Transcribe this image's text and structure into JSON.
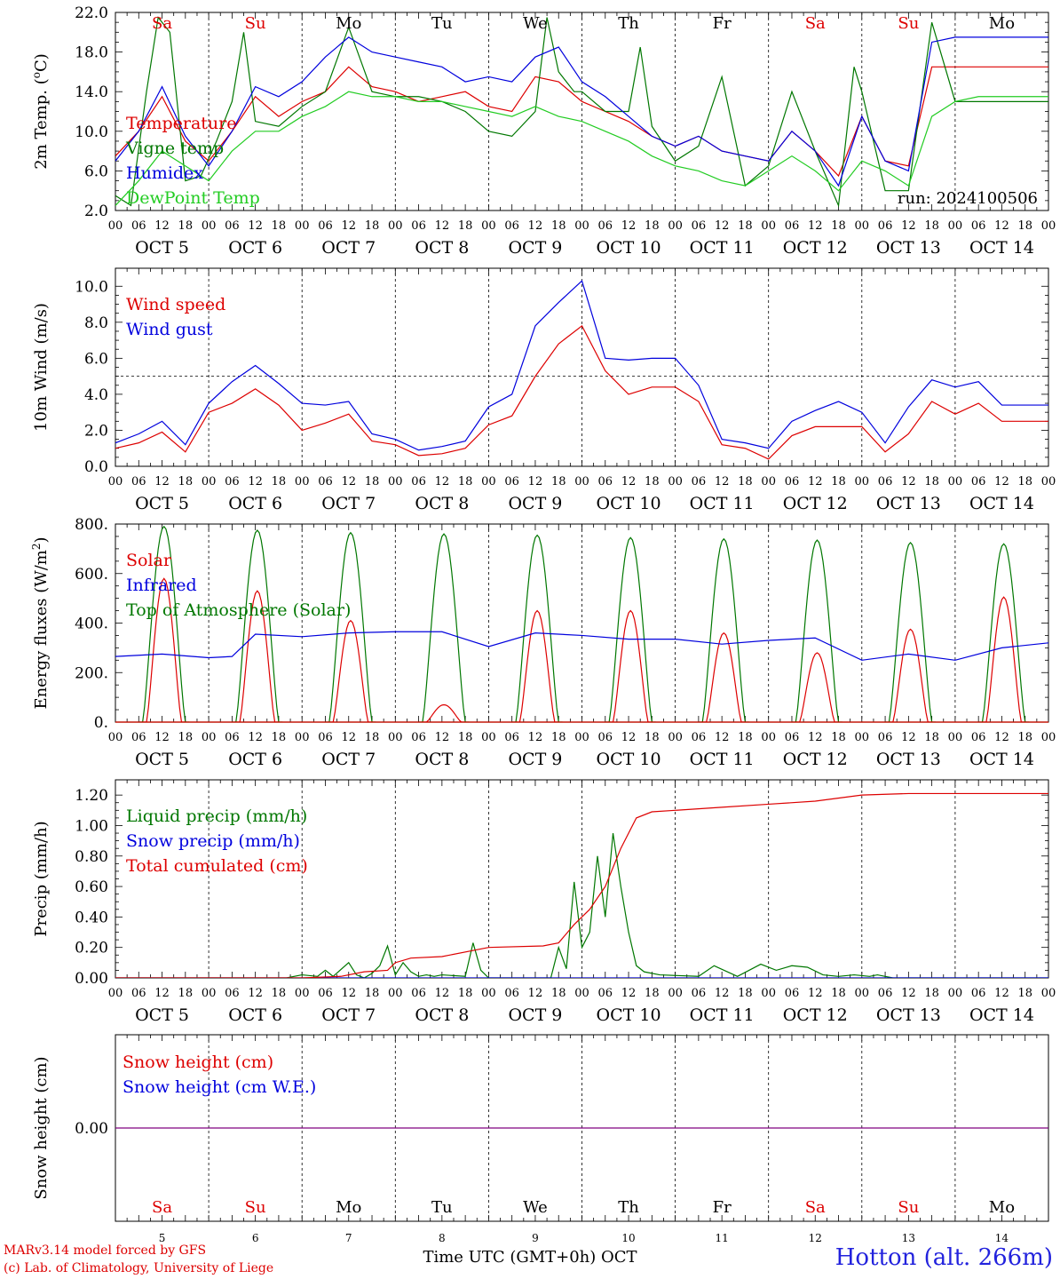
{
  "footer": {
    "credit1": "MARv3.14 model forced by GFS",
    "credit2": "(c) Lab. of Climatology, University of Liege",
    "location": "Hotton (alt. 266m)",
    "time_label": "Time UTC (GMT+0h) OCT"
  },
  "chart_data": [
    {
      "type": "line",
      "ylabel": "2m Temp. (oC)",
      "ylim": [
        2,
        22
      ],
      "yticks": [
        "2.0",
        "6.0",
        "10.0",
        "14.0",
        "18.0",
        "22.0"
      ],
      "annotation": "run: 2024100506",
      "legend": [
        {
          "name": "Temperature",
          "color": "#dd0000"
        },
        {
          "name": "Vigne temp",
          "color": "#007700"
        },
        {
          "name": "Humidex",
          "color": "#0000dd"
        },
        {
          "name": "DewPoint Temp",
          "color": "#22cc22"
        }
      ],
      "days": [
        "Sa",
        "Su",
        "Mo",
        "Tu",
        "We",
        "Th",
        "Fr",
        "Sa",
        "Su",
        "Mo"
      ],
      "day_colors": [
        "#dd0000",
        "#dd0000",
        "#000000",
        "#000000",
        "#000000",
        "#000000",
        "#000000",
        "#dd0000",
        "#dd0000",
        "#000000"
      ],
      "series": [
        {
          "name": "Temperature",
          "color": "#dd0000",
          "x": [
            0,
            6,
            12,
            18,
            24,
            30,
            36,
            42,
            48,
            54,
            60,
            66,
            72,
            78,
            84,
            90,
            96,
            102,
            108,
            114,
            120,
            126,
            132,
            138,
            144,
            150,
            156,
            162,
            168,
            174,
            180,
            186,
            192,
            198,
            204,
            210,
            216,
            222,
            228,
            234,
            240
          ],
          "values": [
            7.5,
            10,
            13.5,
            9,
            7,
            10,
            13.5,
            11.5,
            13,
            14,
            16.5,
            14.5,
            14,
            13,
            13.5,
            14,
            12.5,
            12,
            15.5,
            15,
            13,
            12,
            11,
            9.5,
            8.5,
            9.5,
            8,
            7.5,
            7,
            10,
            8,
            5.5,
            11.5,
            7,
            6.5,
            16.5,
            16.5,
            16.5,
            16.5,
            16.5,
            16.5
          ]
        },
        {
          "name": "Vigne temp",
          "color": "#007700",
          "x": [
            0,
            4,
            8,
            11,
            14,
            18,
            22,
            26,
            30,
            33,
            36,
            42,
            48,
            54,
            60,
            66,
            72,
            78,
            84,
            90,
            96,
            102,
            108,
            111,
            114,
            118,
            120,
            126,
            132,
            135,
            138,
            144,
            150,
            156,
            162,
            168,
            174,
            180,
            186,
            190,
            192,
            198,
            204,
            210,
            216,
            222,
            228,
            234,
            240
          ],
          "values": [
            3.5,
            2.5,
            14,
            21.5,
            20,
            5,
            5.5,
            9,
            13,
            20,
            11,
            10.5,
            12.5,
            14,
            20.5,
            14,
            13.5,
            13.5,
            13,
            12,
            10,
            9.5,
            12,
            21.5,
            16,
            14,
            14,
            12,
            12,
            18.5,
            10.5,
            7,
            8.5,
            15.5,
            4.5,
            6.5,
            14,
            8,
            2.5,
            16.5,
            14,
            4,
            4,
            21,
            13,
            13,
            13,
            13,
            13
          ]
        },
        {
          "name": "Humidex",
          "color": "#0000dd",
          "x": [
            0,
            6,
            12,
            18,
            24,
            30,
            36,
            42,
            48,
            54,
            60,
            66,
            72,
            78,
            84,
            90,
            96,
            102,
            108,
            114,
            120,
            126,
            132,
            138,
            144,
            150,
            156,
            162,
            168,
            174,
            180,
            186,
            192,
            198,
            204,
            210,
            216,
            222,
            228,
            234,
            240
          ],
          "values": [
            7,
            10,
            14.5,
            9.5,
            6.5,
            10,
            14.5,
            13.5,
            15,
            17.5,
            19.5,
            18,
            17.5,
            17,
            16.5,
            15,
            15.5,
            15,
            17.5,
            18.5,
            15,
            13.5,
            11.5,
            9.5,
            8.5,
            9.5,
            8,
            7.5,
            7,
            10,
            8,
            4.5,
            11.5,
            7,
            6,
            19,
            19.5,
            19.5,
            19.5,
            19.5,
            19.5
          ]
        },
        {
          "name": "DewPoint Temp",
          "color": "#22cc22",
          "x": [
            0,
            6,
            12,
            18,
            24,
            30,
            36,
            42,
            48,
            54,
            60,
            66,
            72,
            78,
            84,
            90,
            96,
            102,
            108,
            114,
            120,
            126,
            132,
            138,
            144,
            150,
            156,
            162,
            168,
            174,
            180,
            186,
            192,
            198,
            204,
            210,
            216,
            222,
            228,
            234,
            240
          ],
          "values": [
            2.5,
            5,
            8,
            6.5,
            5,
            8,
            10,
            10,
            11.5,
            12.5,
            14,
            13.5,
            13.5,
            13,
            13,
            12.5,
            12,
            11.5,
            12.5,
            11.5,
            11,
            10,
            9,
            7.5,
            6.5,
            6,
            5,
            4.5,
            6,
            7.5,
            6,
            4,
            7,
            6,
            4.5,
            11.5,
            13,
            13.5,
            13.5,
            13.5,
            13.5
          ]
        }
      ],
      "xticks": [
        "00",
        "06",
        "12",
        "18"
      ],
      "date_labels": [
        "OCT  5",
        "OCT  6",
        "OCT  7",
        "OCT  8",
        "OCT  9",
        "OCT 10",
        "OCT 11",
        "OCT 12",
        "OCT 13",
        "OCT 14"
      ]
    },
    {
      "type": "line",
      "ylabel": "10m Wind (m/s)",
      "ylim": [
        0,
        11
      ],
      "yticks": [
        "0.0",
        "2.0",
        "4.0",
        "6.0",
        "8.0",
        "10.0"
      ],
      "reference_line": 5,
      "legend": [
        {
          "name": "Wind speed",
          "color": "#dd0000"
        },
        {
          "name": "Wind gust",
          "color": "#0000dd"
        }
      ],
      "series": [
        {
          "name": "Wind speed",
          "color": "#dd0000",
          "x": [
            0,
            6,
            12,
            18,
            24,
            30,
            36,
            42,
            48,
            54,
            60,
            66,
            72,
            78,
            84,
            90,
            96,
            102,
            108,
            114,
            120,
            126,
            132,
            138,
            144,
            150,
            156,
            162,
            168,
            174,
            180,
            186,
            192,
            198,
            204,
            210,
            216,
            222,
            228,
            234,
            240
          ],
          "values": [
            1,
            1.3,
            1.9,
            0.8,
            3,
            3.5,
            4.3,
            3.4,
            2,
            2.4,
            2.9,
            1.4,
            1.2,
            0.6,
            0.7,
            1,
            2.3,
            2.8,
            5,
            6.8,
            7.8,
            5.3,
            4,
            4.4,
            4.4,
            3.6,
            1.2,
            1,
            0.4,
            1.7,
            2.2,
            2.2,
            2.2,
            0.8,
            1.8,
            3.6,
            2.9,
            3.5,
            2.5,
            2.5,
            2.5
          ]
        },
        {
          "name": "Wind gust",
          "color": "#0000dd",
          "x": [
            0,
            6,
            12,
            18,
            24,
            30,
            36,
            42,
            48,
            54,
            60,
            66,
            72,
            78,
            84,
            90,
            96,
            102,
            108,
            114,
            120,
            126,
            132,
            138,
            144,
            150,
            156,
            162,
            168,
            174,
            180,
            186,
            192,
            198,
            204,
            210,
            216,
            222,
            228,
            234,
            240
          ],
          "values": [
            1.3,
            1.8,
            2.5,
            1.2,
            3.5,
            4.7,
            5.6,
            4.6,
            3.5,
            3.4,
            3.6,
            1.8,
            1.5,
            0.9,
            1.1,
            1.4,
            3.3,
            4,
            7.8,
            9.1,
            10.3,
            6,
            5.9,
            6,
            6,
            4.5,
            1.5,
            1.3,
            1,
            2.5,
            3.1,
            3.6,
            3,
            1.3,
            3.3,
            4.8,
            4.4,
            4.7,
            3.4,
            3.4,
            3.4
          ]
        }
      ],
      "xticks": [
        "00",
        "06",
        "12",
        "18"
      ],
      "date_labels": [
        "OCT  5",
        "OCT  6",
        "OCT  7",
        "OCT  8",
        "OCT  9",
        "OCT 10",
        "OCT 11",
        "OCT 12",
        "OCT 13",
        "OCT 14"
      ]
    },
    {
      "type": "line",
      "ylabel": "Energy fluxes (W/m2)",
      "ylim": [
        0,
        800
      ],
      "yticks": [
        "0.",
        "200.",
        "400.",
        "600.",
        "800."
      ],
      "legend": [
        {
          "name": "Solar",
          "color": "#dd0000"
        },
        {
          "name": "Infrared",
          "color": "#0000dd"
        },
        {
          "name": "Top of Atmosphere (Solar)",
          "color": "#007700"
        }
      ],
      "series": [
        {
          "name": "Top of Atmosphere (Solar) peaks",
          "color": "#007700",
          "x": [
            12.5,
            36.5,
            60.5,
            84.5,
            108.5,
            132.5,
            156.5,
            180.5,
            204.5,
            228.5
          ],
          "values": [
            790,
            775,
            765,
            760,
            755,
            745,
            740,
            735,
            725,
            720
          ]
        },
        {
          "name": "Solar peaks",
          "color": "#dd0000",
          "x": [
            12.5,
            36.5,
            60.5,
            84.5,
            108.5,
            132.5,
            156.5,
            180.5,
            204.5,
            228.5
          ],
          "values": [
            580,
            530,
            410,
            70,
            450,
            450,
            360,
            280,
            375,
            505
          ]
        },
        {
          "name": "Infrared",
          "color": "#0000dd",
          "x": [
            0,
            12,
            24,
            30,
            36,
            48,
            60,
            72,
            84,
            96,
            108,
            120,
            132,
            144,
            156,
            168,
            180,
            192,
            204,
            216,
            228,
            240
          ],
          "values": [
            265,
            275,
            260,
            265,
            355,
            345,
            360,
            365,
            365,
            305,
            360,
            350,
            335,
            335,
            315,
            330,
            340,
            250,
            275,
            250,
            300,
            320
          ]
        }
      ],
      "xticks": [
        "00",
        "06",
        "12",
        "18"
      ],
      "date_labels": [
        "OCT  5",
        "OCT  6",
        "OCT  7",
        "OCT  8",
        "OCT  9",
        "OCT 10",
        "OCT 11",
        "OCT 12",
        "OCT 13",
        "OCT 14"
      ]
    },
    {
      "type": "line",
      "ylabel": "Precip (mm/h)",
      "ylim": [
        0,
        1.3
      ],
      "yticks": [
        "0.00",
        "0.20",
        "0.40",
        "0.60",
        "0.80",
        "1.00",
        "1.20"
      ],
      "legend": [
        {
          "name": "Liquid precip (mm/h)",
          "color": "#007700"
        },
        {
          "name": "Snow precip (mm/h)",
          "color": "#0000dd"
        },
        {
          "name": "Total cumulated (cm)",
          "color": "#dd0000"
        }
      ],
      "series": [
        {
          "name": "Liquid precip (mm/h)",
          "color": "#007700",
          "x": [
            0,
            44,
            48,
            52,
            54,
            56,
            60,
            62,
            64,
            66,
            68,
            70,
            72,
            74,
            76,
            78,
            80,
            82,
            84,
            90,
            92,
            94,
            96,
            100,
            104,
            112,
            114,
            116,
            118,
            120,
            122,
            124,
            126,
            128,
            130,
            132,
            134,
            136,
            140,
            150,
            154,
            160,
            166,
            170,
            174,
            178,
            182,
            186,
            190,
            194,
            196,
            198,
            200,
            210,
            240
          ],
          "values": [
            0,
            0,
            0.02,
            0.01,
            0.05,
            0.01,
            0.1,
            0.02,
            0,
            0.03,
            0.08,
            0.21,
            0.02,
            0.1,
            0.04,
            0.01,
            0.02,
            0.01,
            0.02,
            0.01,
            0.23,
            0.05,
            0,
            0,
            0,
            0,
            0.2,
            0.06,
            0.63,
            0.2,
            0.3,
            0.8,
            0.4,
            0.95,
            0.6,
            0.3,
            0.08,
            0.04,
            0.02,
            0.01,
            0.08,
            0.01,
            0.09,
            0.05,
            0.08,
            0.07,
            0.02,
            0.01,
            0.02,
            0.01,
            0.02,
            0.01,
            0,
            0,
            0
          ]
        },
        {
          "name": "Snow precip (mm/h)",
          "color": "#0000dd",
          "x": [
            0,
            240
          ],
          "values": [
            0,
            0
          ]
        },
        {
          "name": "Total cumulated (cm)",
          "color": "#dd0000",
          "x": [
            0,
            48,
            58,
            64,
            70,
            72,
            76,
            84,
            96,
            110,
            114,
            118,
            122,
            126,
            130,
            134,
            138,
            144,
            156,
            168,
            180,
            192,
            204,
            216,
            240
          ],
          "values": [
            0,
            0,
            0.01,
            0.04,
            0.05,
            0.1,
            0.13,
            0.14,
            0.2,
            0.21,
            0.23,
            0.35,
            0.45,
            0.6,
            0.85,
            1.05,
            1.09,
            1.1,
            1.12,
            1.14,
            1.16,
            1.2,
            1.21,
            1.21,
            1.21
          ]
        }
      ],
      "xticks": [
        "00",
        "06",
        "12",
        "18"
      ],
      "date_labels": [
        "OCT  5",
        "OCT  6",
        "OCT  7",
        "OCT  8",
        "OCT  9",
        "OCT 10",
        "OCT 11",
        "OCT 12",
        "OCT 13",
        "OCT 14"
      ]
    },
    {
      "type": "line",
      "ylabel": "Snow height (cm)",
      "ylim": [
        -1,
        1
      ],
      "yticks": [
        "0.00"
      ],
      "legend": [
        {
          "name": "Snow height (cm)",
          "color": "#dd0000"
        },
        {
          "name": "Snow height (cm W.E.)",
          "color": "#0000dd"
        }
      ],
      "series": [
        {
          "name": "Snow height (cm)",
          "color": "#800080",
          "x": [
            0,
            240
          ],
          "values": [
            0,
            0
          ]
        }
      ],
      "days": [
        "Sa",
        "Su",
        "Mo",
        "Tu",
        "We",
        "Th",
        "Fr",
        "Sa",
        "Su",
        "Mo"
      ],
      "day_colors": [
        "#dd0000",
        "#dd0000",
        "#000000",
        "#000000",
        "#000000",
        "#000000",
        "#000000",
        "#dd0000",
        "#dd0000",
        "#000000"
      ],
      "day_numbers": [
        "5",
        "6",
        "7",
        "8",
        "9",
        "10",
        "11",
        "12",
        "13",
        "14"
      ]
    }
  ]
}
